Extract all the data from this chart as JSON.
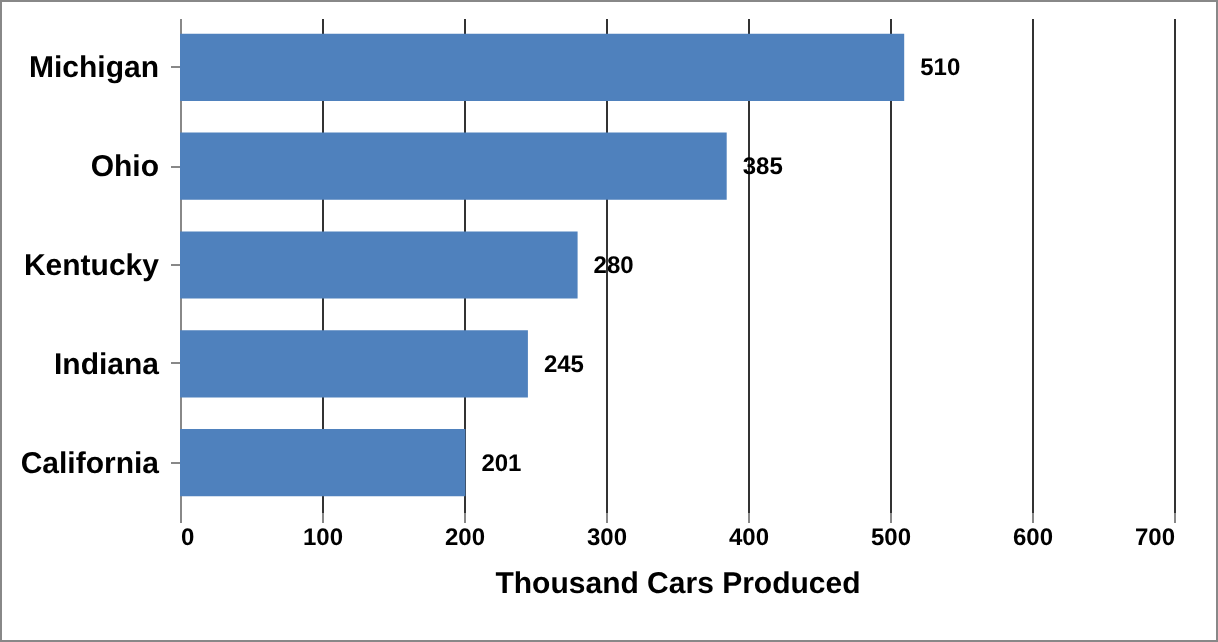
{
  "chart_data": {
    "type": "bar",
    "orientation": "horizontal",
    "xlabel": "Thousand Cars Produced",
    "categories": [
      "Michigan",
      "Ohio",
      "Kentucky",
      "Indiana",
      "California"
    ],
    "values": [
      510,
      385,
      280,
      245,
      201
    ],
    "color": "#4f81bd",
    "xlim": [
      0,
      700
    ],
    "xticks": [
      0,
      100,
      200,
      300,
      400,
      500,
      600,
      700
    ],
    "grid": "x",
    "data_labels": true
  }
}
